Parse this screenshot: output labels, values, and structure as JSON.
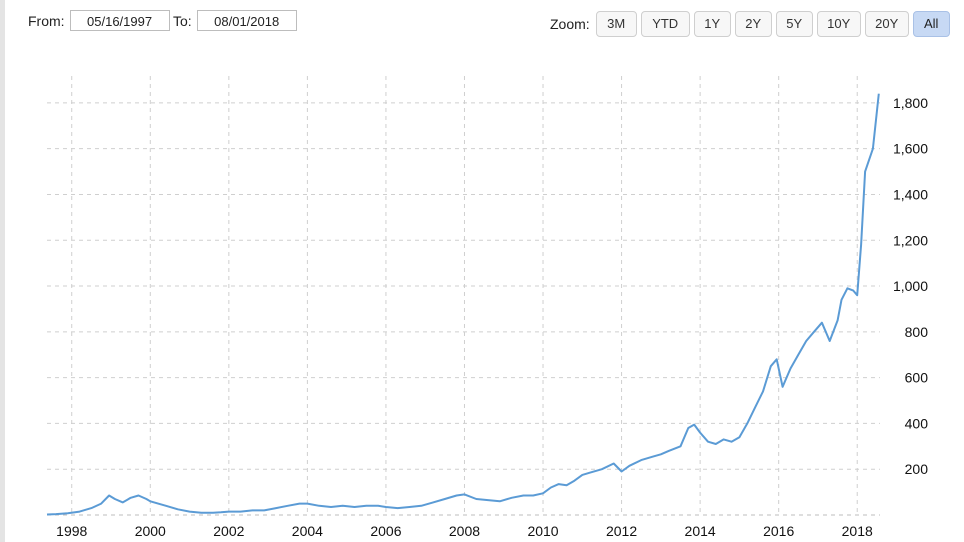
{
  "toolbar": {
    "from_label": "From:",
    "from_value": "05/16/1997",
    "to_label": "To:",
    "to_value": "08/01/2018",
    "zoom_label": "Zoom:",
    "zoom_buttons": [
      "3M",
      "YTD",
      "1Y",
      "2Y",
      "5Y",
      "10Y",
      "20Y",
      "All"
    ],
    "zoom_active": "All"
  },
  "colors": {
    "line": "#5b9bd5",
    "grid": "#cfcfcf",
    "active_button": "#c7d9f4"
  },
  "chart_data": {
    "type": "line",
    "title": "",
    "xlabel": "",
    "ylabel": "",
    "xlim": [
      1997.37,
      2018.58
    ],
    "ylim": [
      0,
      1900
    ],
    "grid": true,
    "y_axis_side": "right",
    "x_ticks": [
      "1998",
      "2000",
      "2002",
      "2004",
      "2006",
      "2008",
      "2010",
      "2012",
      "2014",
      "2016",
      "2018"
    ],
    "y_ticks": [
      "200",
      "400",
      "600",
      "800",
      "1,000",
      "1,200",
      "1,400",
      "1,600",
      "1,800"
    ],
    "series": [
      {
        "x": [
          1997.37,
          1997.6,
          1997.9,
          1998.2,
          1998.5,
          1998.75,
          1998.95,
          1999.1,
          1999.3,
          1999.5,
          1999.7,
          1999.9,
          2000.0,
          2000.2,
          2000.4,
          2000.7,
          2001.0,
          2001.3,
          2001.6,
          2001.8,
          2002.0,
          2002.3,
          2002.6,
          2002.9,
          2003.2,
          2003.5,
          2003.8,
          2004.0,
          2004.3,
          2004.6,
          2004.9,
          2005.2,
          2005.5,
          2005.8,
          2006.0,
          2006.3,
          2006.6,
          2006.9,
          2007.2,
          2007.5,
          2007.8,
          2008.0,
          2008.3,
          2008.6,
          2008.9,
          2009.2,
          2009.5,
          2009.75,
          2010.0,
          2010.2,
          2010.4,
          2010.6,
          2010.8,
          2011.0,
          2011.2,
          2011.5,
          2011.8,
          2012.0,
          2012.2,
          2012.5,
          2012.8,
          2013.0,
          2013.2,
          2013.5,
          2013.7,
          2013.85,
          2014.0,
          2014.2,
          2014.4,
          2014.6,
          2014.8,
          2015.0,
          2015.2,
          2015.4,
          2015.6,
          2015.8,
          2015.95,
          2016.1,
          2016.3,
          2016.5,
          2016.7,
          2016.9,
          2017.1,
          2017.3,
          2017.5,
          2017.6,
          2017.75,
          2017.9,
          2018.0,
          2018.1,
          2018.2,
          2018.4,
          2018.55
        ],
        "y": [
          2,
          4,
          8,
          15,
          30,
          50,
          85,
          70,
          55,
          75,
          85,
          70,
          60,
          50,
          40,
          25,
          15,
          10,
          10,
          12,
          15,
          15,
          20,
          20,
          30,
          40,
          50,
          50,
          40,
          35,
          40,
          35,
          40,
          40,
          35,
          30,
          35,
          40,
          55,
          70,
          85,
          90,
          70,
          65,
          60,
          75,
          85,
          85,
          95,
          120,
          135,
          130,
          150,
          175,
          185,
          200,
          225,
          190,
          215,
          240,
          255,
          265,
          280,
          300,
          380,
          395,
          360,
          320,
          310,
          330,
          320,
          340,
          400,
          470,
          540,
          650,
          680,
          560,
          640,
          700,
          760,
          800,
          840,
          760,
          850,
          940,
          990,
          980,
          960,
          1180,
          1500,
          1600,
          1840
        ]
      }
    ]
  }
}
